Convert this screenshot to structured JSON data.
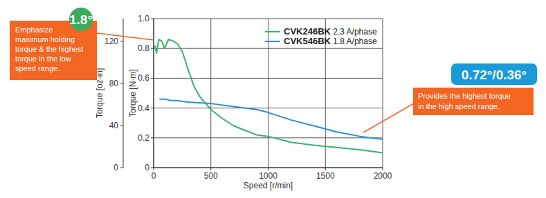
{
  "chart_data": {
    "type": "line",
    "x_label": "Speed [r/min]",
    "y_label": "Torque [N·m]",
    "y2_label": "Torque [oz-in]",
    "xlim": [
      0,
      2000
    ],
    "xticks": [
      0,
      500,
      1000,
      1500,
      2000
    ],
    "ylim": [
      0,
      1
    ],
    "yticks": [
      0,
      0.2,
      0.4,
      0.6,
      0.8,
      {
        "value": 1,
        "label": "1.0"
      }
    ],
    "y2lim": [
      0,
      141.6
    ],
    "y2ticks": [
      0,
      40,
      80,
      120
    ],
    "grid": true,
    "legend": "top",
    "series": [
      {
        "name": "CVK246BK 2.3 A/phase",
        "color": "#35b46e",
        "x": [
          10,
          25,
          45,
          70,
          95,
          130,
          170,
          210,
          250,
          300,
          350,
          400,
          500,
          600,
          700,
          800,
          900,
          1000,
          1200,
          1400,
          1600,
          1800,
          2000
        ],
        "values": [
          0.82,
          0.77,
          0.86,
          0.85,
          0.8,
          0.86,
          0.85,
          0.83,
          0.78,
          0.66,
          0.55,
          0.48,
          0.39,
          0.33,
          0.28,
          0.25,
          0.22,
          0.21,
          0.17,
          0.15,
          0.135,
          0.12,
          0.1
        ]
      },
      {
        "name": "CVK546BK 1.8 A/phase",
        "color": "#2b8fd0",
        "x": [
          50,
          100,
          150,
          200,
          300,
          500,
          700,
          900,
          1000,
          1200,
          1400,
          1600,
          1800,
          2000
        ],
        "values": [
          0.46,
          0.46,
          0.45,
          0.45,
          0.44,
          0.43,
          0.41,
          0.39,
          0.37,
          0.32,
          0.28,
          0.24,
          0.21,
          0.19
        ]
      }
    ],
    "annotations": [
      {
        "text": "1.8°"
      },
      {
        "text": [
          "Emphasize",
          "maximum holding",
          "torque & the highest",
          "torque in the low",
          "speed range."
        ]
      },
      {
        "text": "0.72°/0.36°"
      },
      {
        "text": [
          "Provides the highest torque",
          "in the high speed range."
        ]
      }
    ]
  }
}
